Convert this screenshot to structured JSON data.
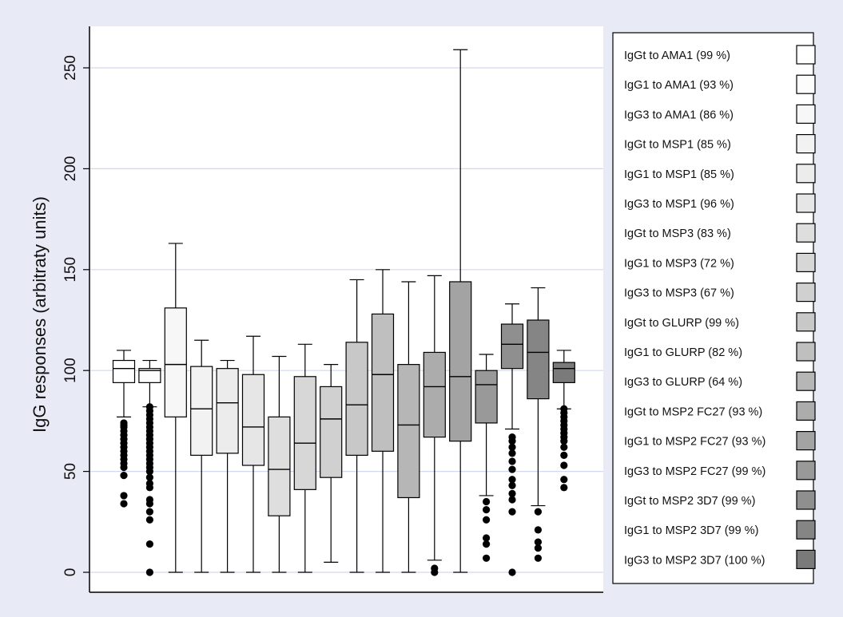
{
  "chart_data": {
    "type": "box",
    "title": "",
    "xlabel": "",
    "ylabel": "IgG responses (arbitraty units)",
    "ylim": [
      -8,
      270
    ],
    "yticks": [
      0,
      50,
      100,
      150,
      200,
      250
    ],
    "grid": true,
    "legend_position": "right",
    "series": [
      {
        "name": "IgGt to AMA1 (99 %)",
        "color": "#ffffff",
        "q1": 94,
        "median": 101,
        "q3": 105,
        "whisker_low": 77,
        "whisker_high": 110,
        "outliers": [
          74,
          73,
          72,
          70,
          68,
          66,
          64,
          62,
          60,
          58,
          56,
          54,
          52,
          48,
          38,
          34
        ]
      },
      {
        "name": "IgG1 to AMA1 (93 %)",
        "color": "#fcfcfc",
        "q1": 94,
        "median": 100,
        "q3": 101,
        "whisker_low": 82,
        "whisker_high": 105,
        "outliers": [
          82,
          80,
          78,
          76,
          74,
          72,
          70,
          68,
          66,
          64,
          62,
          60,
          58,
          56,
          54,
          52,
          50,
          47,
          44,
          42,
          36,
          34,
          30,
          26,
          14,
          0
        ]
      },
      {
        "name": "IgG3 to AMA1 (86 %)",
        "color": "#f7f7f7",
        "q1": 77,
        "median": 103,
        "q3": 131,
        "whisker_low": 0,
        "whisker_high": 163,
        "outliers": []
      },
      {
        "name": "IgGt to MSP1 (85 %)",
        "color": "#f2f2f2",
        "q1": 58,
        "median": 81,
        "q3": 102,
        "whisker_low": 0,
        "whisker_high": 115,
        "outliers": []
      },
      {
        "name": "IgG1 to MSP1 (85 %)",
        "color": "#ececec",
        "q1": 59,
        "median": 84,
        "q3": 101,
        "whisker_low": 0,
        "whisker_high": 105,
        "outliers": []
      },
      {
        "name": "IgG3 to MSP1 (96 %)",
        "color": "#e6e6e6",
        "q1": 53,
        "median": 72,
        "q3": 98,
        "whisker_low": 0,
        "whisker_high": 117,
        "outliers": []
      },
      {
        "name": "IgGt to MSP3 (83 %)",
        "color": "#dedede",
        "q1": 28,
        "median": 51,
        "q3": 77,
        "whisker_low": 0,
        "whisker_high": 107,
        "outliers": []
      },
      {
        "name": "IgG1 to MSP3 (72 %)",
        "color": "#d7d7d7",
        "q1": 41,
        "median": 64,
        "q3": 97,
        "whisker_low": 0,
        "whisker_high": 113,
        "outliers": []
      },
      {
        "name": "IgG3 to MSP3 (67 %)",
        "color": "#d0d0d0",
        "q1": 47,
        "median": 76,
        "q3": 92,
        "whisker_low": 5,
        "whisker_high": 103,
        "outliers": []
      },
      {
        "name": "IgGt to GLURP (99 %)",
        "color": "#c8c8c8",
        "q1": 58,
        "median": 83,
        "q3": 114,
        "whisker_low": 0,
        "whisker_high": 145,
        "outliers": []
      },
      {
        "name": "IgG1 to GLURP (82 %)",
        "color": "#bfbfbf",
        "q1": 60,
        "median": 98,
        "q3": 128,
        "whisker_low": 0,
        "whisker_high": 150,
        "outliers": []
      },
      {
        "name": "IgG3 to GLURP (64 %)",
        "color": "#b6b6b6",
        "q1": 37,
        "median": 73,
        "q3": 103,
        "whisker_low": 0,
        "whisker_high": 144,
        "outliers": []
      },
      {
        "name": "IgGt to MSP2 FC27 (93 %)",
        "color": "#acacac",
        "q1": 67,
        "median": 92,
        "q3": 109,
        "whisker_low": 6,
        "whisker_high": 147,
        "outliers": [
          2,
          0
        ]
      },
      {
        "name": "IgG1 to MSP2 FC27 (93 %)",
        "color": "#a3a3a3",
        "q1": 65,
        "median": 97,
        "q3": 144,
        "whisker_low": 0,
        "whisker_high": 259,
        "outliers": []
      },
      {
        "name": "IgG3 to MSP2 FC27 (99 %)",
        "color": "#999999",
        "q1": 74,
        "median": 93,
        "q3": 100,
        "whisker_low": 38,
        "whisker_high": 108,
        "outliers": [
          35,
          31,
          26,
          17,
          14,
          7
        ]
      },
      {
        "name": "IgGt to MSP2 3D7 (99 %)",
        "color": "#8f8f8f",
        "q1": 101,
        "median": 113,
        "q3": 123,
        "whisker_low": 71,
        "whisker_high": 133,
        "outliers": [
          67,
          65,
          62,
          59,
          55,
          51,
          46,
          43,
          39,
          36,
          30,
          0
        ]
      },
      {
        "name": "IgG1 to MSP2 3D7 (99 %)",
        "color": "#858585",
        "q1": 86,
        "median": 109,
        "q3": 125,
        "whisker_low": 33,
        "whisker_high": 141,
        "outliers": [
          30,
          21,
          15,
          12,
          7
        ]
      },
      {
        "name": "IgG3 to MSP2 3D7 (100 %)",
        "color": "#7a7a7a",
        "q1": 94,
        "median": 101,
        "q3": 104,
        "whisker_low": 81,
        "whisker_high": 110,
        "outliers": [
          81,
          79,
          77,
          75,
          73,
          71,
          69,
          67,
          65,
          62,
          58,
          53,
          46,
          42
        ]
      }
    ]
  }
}
